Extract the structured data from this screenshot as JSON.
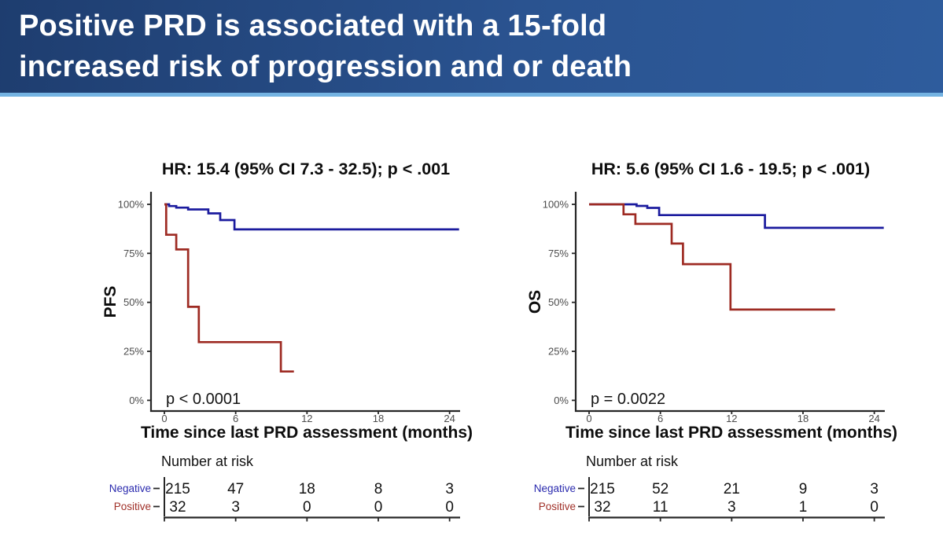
{
  "header": {
    "title_line1": "Positive PRD is associated with a 15-fold",
    "title_line2": "increased risk of progression and or death"
  },
  "colors": {
    "header_bg_left": "#1e3d6f",
    "header_bg_right": "#2e5c9d",
    "header_accent_stripe": "#74b3e2",
    "negative_line": "#1b1b9e",
    "positive_line": "#9e2b23",
    "negative_label": "#2a2aae",
    "positive_label": "#a03028",
    "axis": "#262626",
    "tick_label": "#4c4c4c"
  },
  "chart_data": [
    {
      "type": "line",
      "subtype": "kaplan-meier-step",
      "title": "HR: 15.4 (95% CI 7.3 - 32.5); p < .001",
      "ylabel": "PFS",
      "xlabel": "Time since last PRD assessment (months)",
      "p_value_annotation": "p < 0.0001",
      "xlim": [
        0,
        25
      ],
      "ylim": [
        0,
        100
      ],
      "grid": "off",
      "legend": "none",
      "x_ticks": [
        0,
        6,
        12,
        18,
        24
      ],
      "y_tick_values": [
        0,
        25,
        50,
        75,
        100
      ],
      "y_tick_labels": [
        "0%",
        "25%",
        "50%",
        "75%",
        "100%"
      ],
      "series": [
        {
          "name": "Negative",
          "color": "#1b1b9e",
          "steps": [
            [
              0,
              100
            ],
            [
              0.4,
              99.1
            ],
            [
              1.0,
              98.3
            ],
            [
              2.0,
              97.4
            ],
            [
              3.7,
              95.4
            ],
            [
              4.7,
              92.0
            ],
            [
              5.9,
              87.2
            ]
          ],
          "end_x": 24.8
        },
        {
          "name": "Positive",
          "color": "#9e2b23",
          "steps": [
            [
              0,
              100
            ],
            [
              0.15,
              84.5
            ],
            [
              1.0,
              77.0
            ],
            [
              2.0,
              47.7
            ],
            [
              2.9,
              29.7
            ],
            [
              9.8,
              14.7
            ]
          ],
          "end_x": 10.9
        }
      ],
      "number_at_risk": {
        "title": "Number at risk",
        "rows": [
          {
            "label": "Negative",
            "label_color": "#2a2aae",
            "values": [
              "215",
              "47",
              "18",
              "8",
              "3"
            ]
          },
          {
            "label": "Positive",
            "label_color": "#a03028",
            "values": [
              "32",
              "3",
              "0",
              "0",
              "0"
            ]
          }
        ]
      }
    },
    {
      "type": "line",
      "subtype": "kaplan-meier-step",
      "title": "HR: 5.6 (95% CI 1.6 - 19.5; p < .001)",
      "ylabel": "OS",
      "xlabel": "Time since last PRD assessment (months)",
      "p_value_annotation": "p = 0.0022",
      "xlim": [
        0,
        25
      ],
      "ylim": [
        0,
        100
      ],
      "grid": "off",
      "legend": "none",
      "x_ticks": [
        0,
        6,
        12,
        18,
        24
      ],
      "y_tick_values": [
        0,
        25,
        50,
        75,
        100
      ],
      "y_tick_labels": [
        "0%",
        "25%",
        "50%",
        "75%",
        "100%"
      ],
      "series": [
        {
          "name": "Negative",
          "color": "#1b1b9e",
          "steps": [
            [
              0,
              100
            ],
            [
              4.0,
              99.2
            ],
            [
              4.9,
              98.2
            ],
            [
              5.9,
              94.5
            ],
            [
              14.8,
              88.0
            ]
          ],
          "end_x": 24.8
        },
        {
          "name": "Positive",
          "color": "#9e2b23",
          "steps": [
            [
              0,
              100
            ],
            [
              2.9,
              94.9
            ],
            [
              3.9,
              90.0
            ],
            [
              6.95,
              80.0
            ],
            [
              7.9,
              69.5
            ],
            [
              11.9,
              46.3
            ]
          ],
          "end_x": 20.7
        }
      ],
      "number_at_risk": {
        "title": "Number at risk",
        "rows": [
          {
            "label": "Negative",
            "label_color": "#2a2aae",
            "values": [
              "215",
              "52",
              "21",
              "9",
              "3"
            ]
          },
          {
            "label": "Positive",
            "label_color": "#a03028",
            "values": [
              "32",
              "11",
              "3",
              "1",
              "0"
            ]
          }
        ]
      }
    }
  ]
}
